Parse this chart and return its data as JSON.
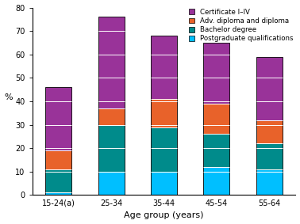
{
  "categories": [
    "15-24(a)",
    "25-34",
    "35-44",
    "45-54",
    "55-64"
  ],
  "series": {
    "Postgraduate qualifications": [
      1,
      10,
      10,
      12,
      11
    ],
    "Bachelor degree": [
      10,
      20,
      19,
      14,
      11
    ],
    "Adv. diploma and diploma": [
      8,
      7,
      12,
      13,
      10
    ],
    "Certificate I–IV": [
      27,
      39,
      27,
      26,
      27
    ]
  },
  "colors": {
    "Postgraduate qualifications": "#00bfff",
    "Bachelor degree": "#008b8b",
    "Adv. diploma and diploma": "#e8622a",
    "Certificate I–IV": "#993399"
  },
  "ylabel": "%",
  "xlabel": "Age group (years)",
  "ylim": [
    0,
    80
  ],
  "yticks": [
    0,
    10,
    20,
    30,
    40,
    50,
    60,
    70,
    80
  ],
  "legend_order": [
    "Certificate I–IV",
    "Adv. diploma and diploma",
    "Bachelor degree",
    "Postgraduate qualifications"
  ],
  "bar_edgecolor": "black",
  "bar_linewidth": 0.6,
  "separator_color": "white",
  "separator_linewidth": 0.7,
  "background_color": "#ffffff",
  "figure_size": [
    3.78,
    2.83
  ],
  "dpi": 100
}
